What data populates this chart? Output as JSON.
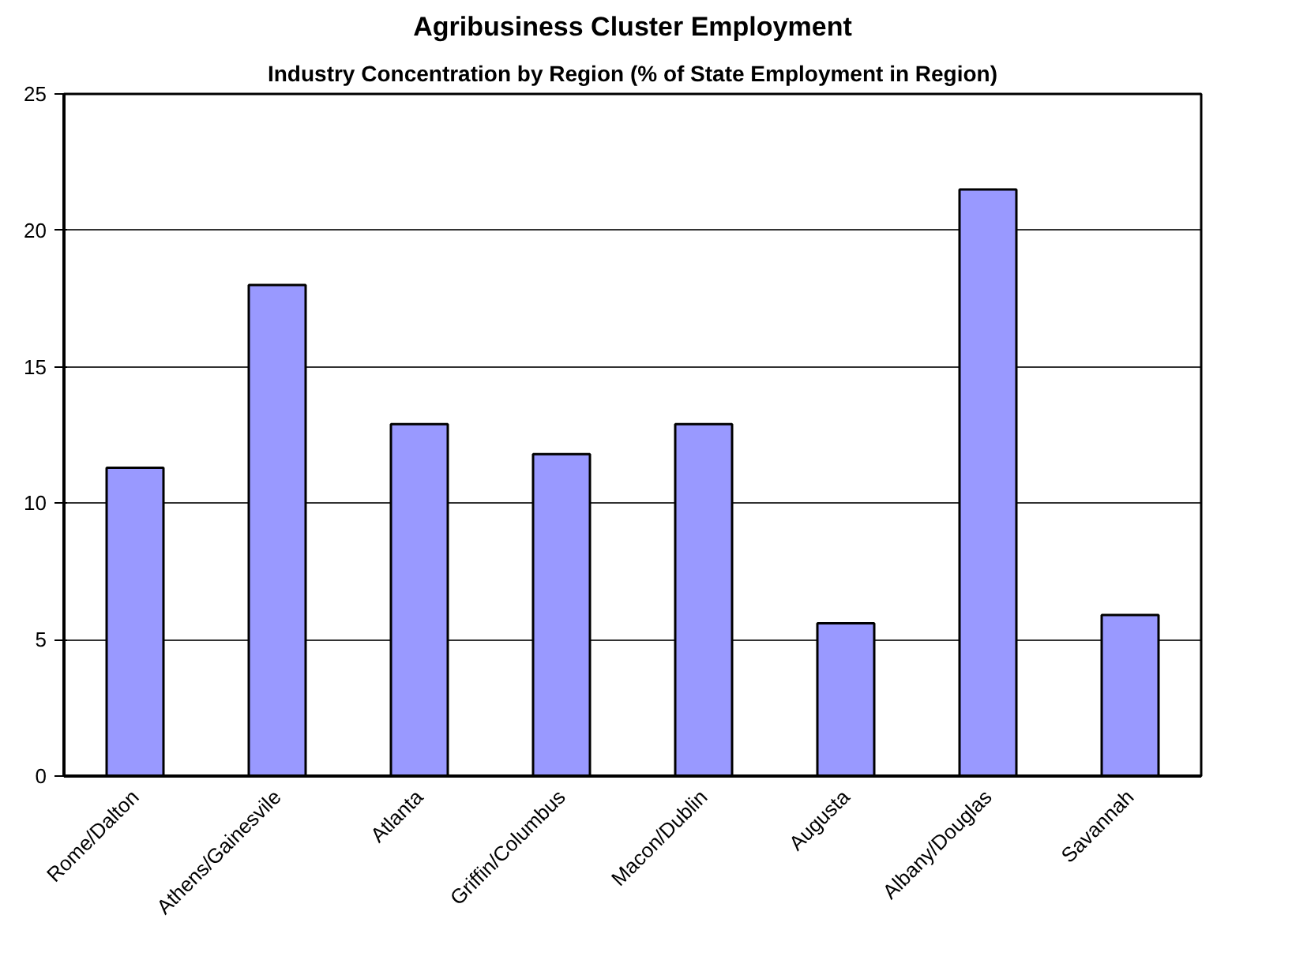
{
  "chart_data": {
    "type": "bar",
    "title": "Agribusiness Cluster Employment",
    "subtitle": "Industry Concentration by Region (% of State Employment in Region)",
    "categories": [
      "Rome/Dalton",
      "Athens/Gainesvile",
      "Atlanta",
      "Griffin/Columbus",
      "Macon/Dublin",
      "Augusta",
      "Albany/Douglas",
      "Savannah"
    ],
    "values": [
      11.3,
      18.0,
      12.9,
      11.8,
      12.9,
      5.6,
      21.5,
      5.9
    ],
    "color": "#9999ff",
    "ylim": [
      0,
      25
    ],
    "yticks": [
      0,
      5,
      10,
      15,
      20,
      25
    ],
    "grid": "y"
  }
}
